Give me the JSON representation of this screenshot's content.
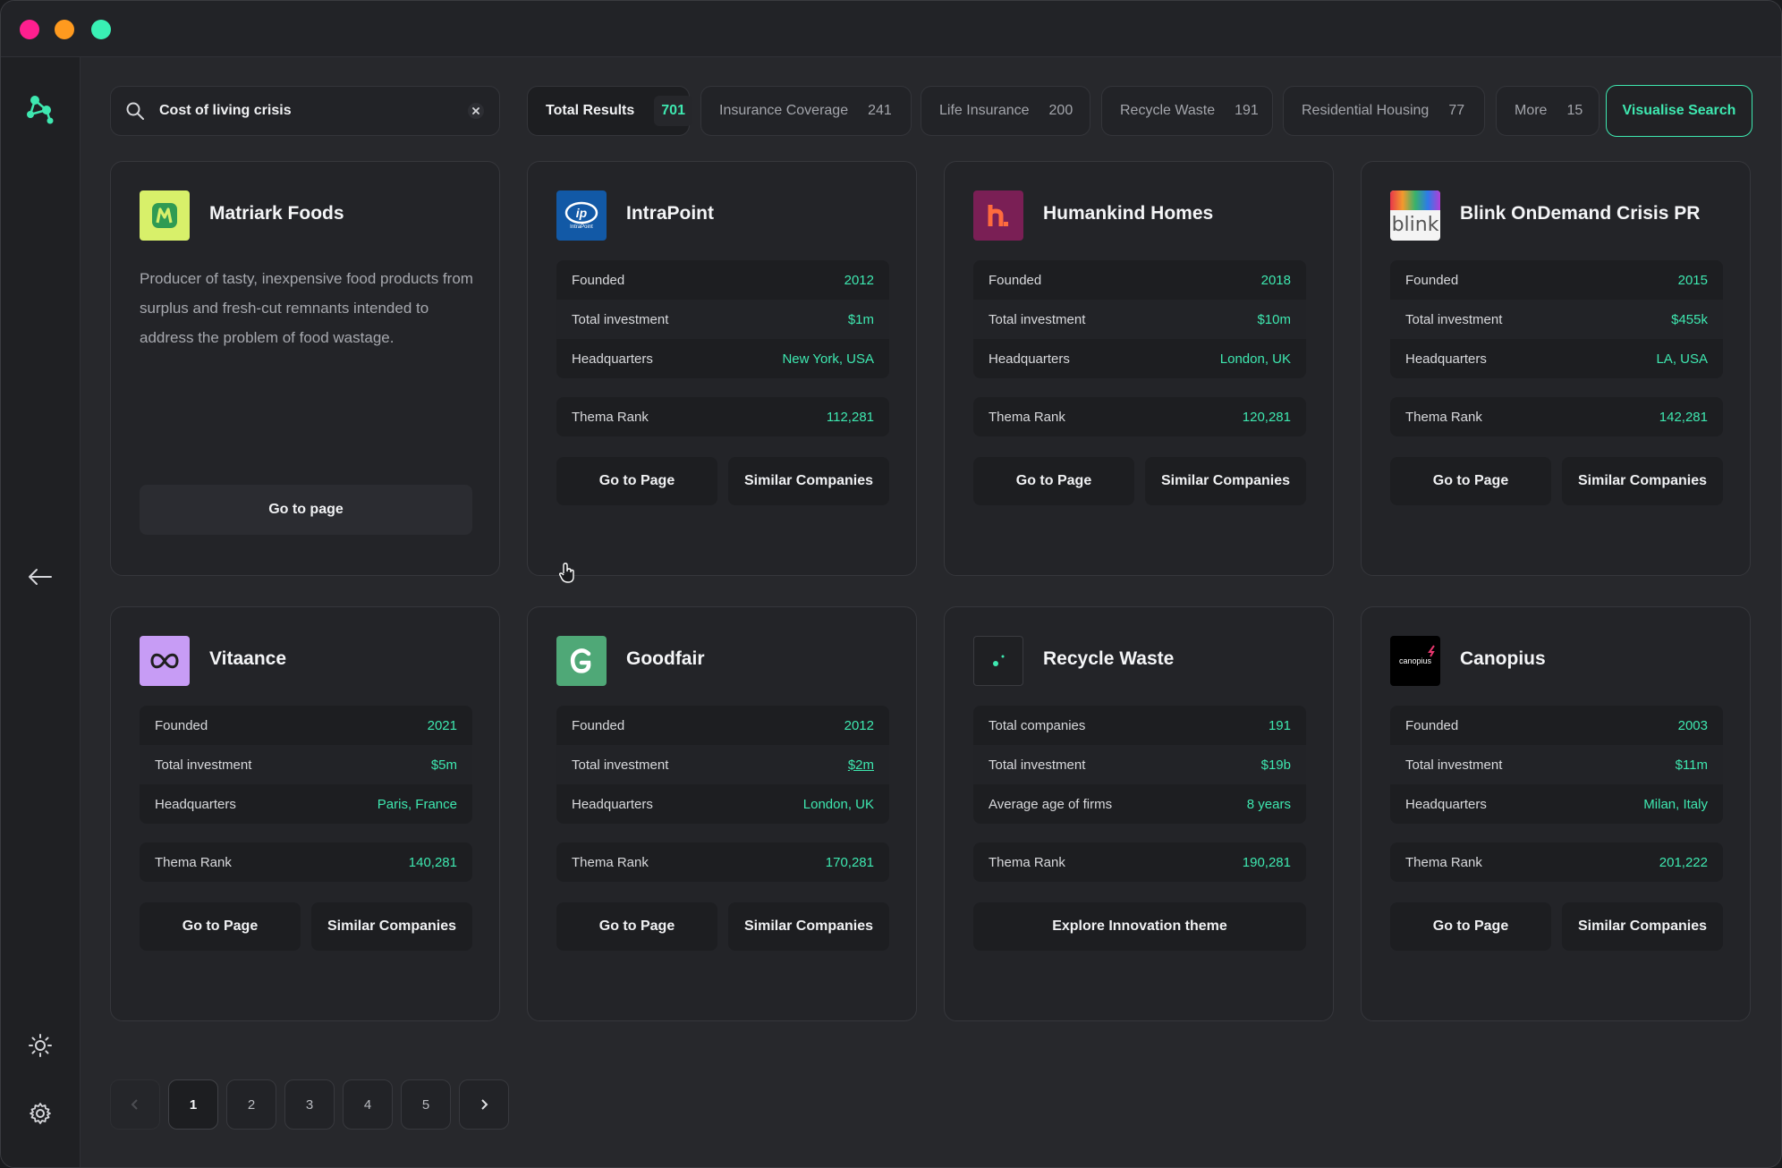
{
  "search": {
    "value": "Cost of living crisis"
  },
  "filters": [
    {
      "label": "Total Results",
      "count": "701"
    },
    {
      "label": "Insurance Coverage",
      "count": "241"
    },
    {
      "label": "Life Insurance",
      "count": "200"
    },
    {
      "label": "Recycle Waste",
      "count": "191"
    },
    {
      "label": "Residential Housing",
      "count": "77"
    },
    {
      "label": "More",
      "count": "15"
    }
  ],
  "visualise_label": "Visualise Search",
  "cards": {
    "matriark": {
      "name": "Matriark Foods",
      "desc": "Producer of tasty, inexpensive food products from surplus and fresh-cut remnants intended to address the problem of food wastage.",
      "button": "Go to page"
    },
    "intrapoint": {
      "name": "IntraPoint",
      "logo_text": "IntraPoint",
      "founded_label": "Founded",
      "founded": "2012",
      "invest_label": "Total investment",
      "invest": "$1m",
      "hq_label": "Headquarters",
      "hq": "New York, USA",
      "rank_label": "Thema Rank",
      "rank": "112,281",
      "go": "Go to Page",
      "similar": "Similar Companies"
    },
    "humankind": {
      "name": "Humankind Homes",
      "founded_label": "Founded",
      "founded": "2018",
      "invest_label": "Total investment",
      "invest": "$10m",
      "hq_label": "Headquarters",
      "hq": "London, UK",
      "rank_label": "Thema Rank",
      "rank": "120,281",
      "go": "Go to Page",
      "similar": "Similar Companies"
    },
    "blink": {
      "name": "Blink OnDemand Crisis PR",
      "logo_text": "blink",
      "founded_label": "Founded",
      "founded": "2015",
      "invest_label": "Total investment",
      "invest": "$455k",
      "hq_label": "Headquarters",
      "hq": "LA, USA",
      "rank_label": "Thema Rank",
      "rank": "142,281",
      "go": "Go to Page",
      "similar": "Similar Companies"
    },
    "vitaance": {
      "name": "Vitaance",
      "founded_label": "Founded",
      "founded": "2021",
      "invest_label": "Total investment",
      "invest": "$5m",
      "hq_label": "Headquarters",
      "hq": "Paris, France",
      "rank_label": "Thema Rank",
      "rank": "140,281",
      "go": "Go to Page",
      "similar": "Similar Companies"
    },
    "goodfair": {
      "name": "Goodfair",
      "founded_label": "Founded",
      "founded": "2012",
      "invest_label": "Total investment",
      "invest": "$2m",
      "hq_label": "Headquarters",
      "hq": "London, UK",
      "rank_label": "Thema Rank",
      "rank": "170,281",
      "go": "Go to Page",
      "similar": "Similar Companies"
    },
    "recycle": {
      "name": "Recycle Waste",
      "companies_label": "Total companies",
      "companies": "191",
      "invest_label": "Total investment",
      "invest": "$19b",
      "age_label": "Average age of firms",
      "age": "8 years",
      "rank_label": "Thema Rank",
      "rank": "190,281",
      "explore": "Explore Innovation theme"
    },
    "canopius": {
      "name": "Canopius",
      "logo_text": "canopius",
      "founded_label": "Founded",
      "founded": "2003",
      "invest_label": "Total investment",
      "invest": "$11m",
      "hq_label": "Headquarters",
      "hq": "Milan, Italy",
      "rank_label": "Thema Rank",
      "rank": "201,222",
      "go": "Go to Page",
      "similar": "Similar Companies"
    }
  },
  "pagination": {
    "pages": [
      "1",
      "2",
      "3",
      "4",
      "5"
    ],
    "current": "1"
  },
  "colors": {
    "accent": "#3ee8b0",
    "background": "#27282c",
    "card": "#232428"
  }
}
